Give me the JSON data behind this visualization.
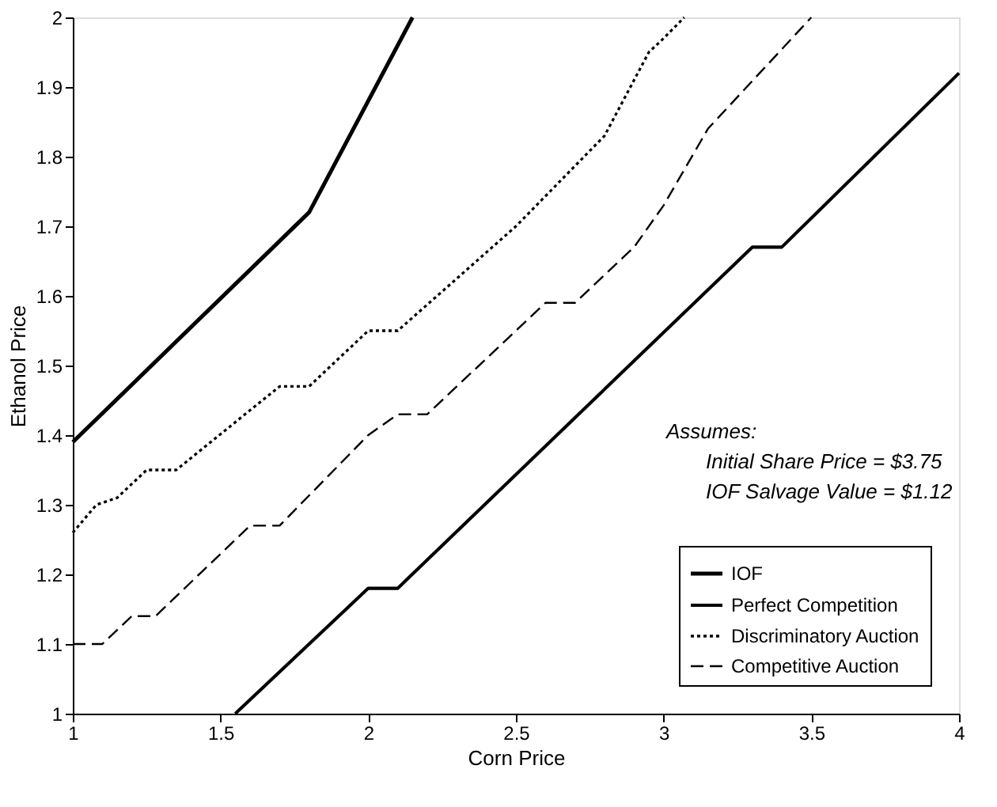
{
  "chart_data": {
    "type": "line",
    "xlabel": "Corn Price",
    "ylabel": "Ethanol Price",
    "xlim": [
      1,
      4
    ],
    "ylim": [
      1,
      2
    ],
    "xticks": [
      1,
      1.5,
      2,
      2.5,
      3,
      3.5,
      4
    ],
    "yticks": [
      1,
      1.1,
      1.2,
      1.3,
      1.4,
      1.5,
      1.6,
      1.7,
      1.8,
      1.9,
      2
    ],
    "grid": false,
    "legend": "bottom right",
    "marker": "none",
    "annotations": [
      "Assumes:",
      "Initial Share Price = $3.75",
      "IOF Salvage Value = $1.12"
    ],
    "series": [
      {
        "name": "IOF",
        "color": "#000000",
        "line_style": "solid",
        "x": [
          1,
          1.8,
          2.15
        ],
        "values": [
          1.39,
          1.72,
          2.0
        ]
      },
      {
        "name": "Perfect Competition",
        "color": "#000000",
        "line_style": "solid",
        "x": [
          1.55,
          2.0,
          2.1,
          3.3,
          3.4,
          4.0
        ],
        "values": [
          1.0,
          1.18,
          1.18,
          1.67,
          1.67,
          1.92
        ]
      },
      {
        "name": "Discriminatory Auction",
        "color": "#000000",
        "line_style": "dotted",
        "x": [
          1,
          1.08,
          1.15,
          1.25,
          1.35,
          1.7,
          1.8,
          2.0,
          2.1,
          2.5,
          2.8,
          2.95,
          3.0,
          3.07
        ],
        "values": [
          1.26,
          1.3,
          1.31,
          1.35,
          1.35,
          1.47,
          1.47,
          1.55,
          1.55,
          1.7,
          1.83,
          1.95,
          1.97,
          2.0
        ]
      },
      {
        "name": "Competitive Auction",
        "color": "#000000",
        "line_style": "dashed",
        "x": [
          1,
          1.1,
          1.2,
          1.28,
          1.6,
          1.7,
          2.0,
          2.1,
          2.2,
          2.6,
          2.7,
          2.9,
          3.0,
          3.15,
          3.5
        ],
        "values": [
          1.1,
          1.1,
          1.14,
          1.14,
          1.27,
          1.27,
          1.4,
          1.43,
          1.43,
          1.59,
          1.59,
          1.67,
          1.73,
          1.84,
          2.0
        ]
      }
    ]
  }
}
